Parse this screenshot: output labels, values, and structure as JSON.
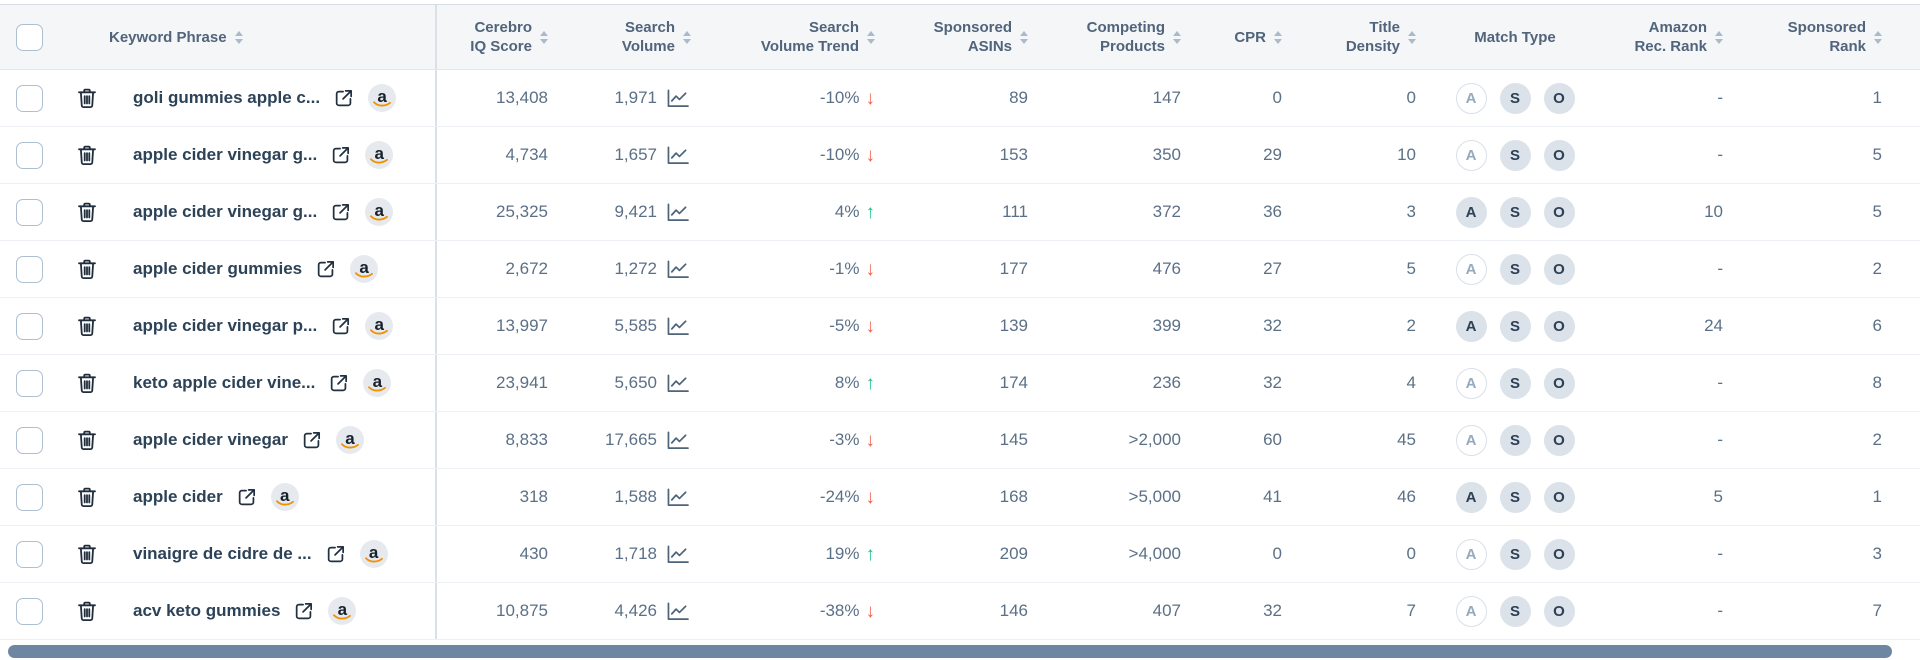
{
  "theme": {
    "header_bg": "#f4f6f8",
    "header_text": "#51647b",
    "value_text": "#5b7086",
    "keyword_text": "#2c4257",
    "divider": "#d9e0e8",
    "row_border": "#edf1f5",
    "positive": "#1fbd8e",
    "negative": "#f2604d",
    "badge_filled_bg": "#dbe2ea",
    "badge_outline_text": "#95aabe",
    "amazon_orange": "#f19100",
    "scrollbar": "#6d87a2"
  },
  "header": {
    "keyword_label": "Keyword Phrase",
    "columns": [
      {
        "id": "iq",
        "line1": "Cerebro",
        "line2": "IQ Score",
        "sortable": true
      },
      {
        "id": "sv",
        "line1": "Search",
        "line2": "Volume",
        "sortable": true
      },
      {
        "id": "svt",
        "line1": "Search",
        "line2": "Volume Trend",
        "sortable": true
      },
      {
        "id": "sponsored_asins",
        "line1": "Sponsored",
        "line2": "ASINs",
        "sortable": true
      },
      {
        "id": "competing",
        "line1": "Competing",
        "line2": "Products",
        "sortable": true
      },
      {
        "id": "cpr",
        "line1": "CPR",
        "line2": "",
        "sortable": true
      },
      {
        "id": "title_density",
        "line1": "Title",
        "line2": "Density",
        "sortable": true
      },
      {
        "id": "match_type",
        "line1": "Match Type",
        "line2": "",
        "sortable": false
      },
      {
        "id": "amazon_rec_rank",
        "line1": "Amazon",
        "line2": "Rec. Rank",
        "sortable": true
      },
      {
        "id": "sponsored_rank",
        "line1": "Sponsored",
        "line2": "Rank",
        "sortable": true
      }
    ]
  },
  "match_type_options": [
    "A",
    "S",
    "O"
  ],
  "rows": [
    {
      "keyword": "goli gummies apple c...",
      "iq": "13,408",
      "search_volume": "1,971",
      "trend": "-10%",
      "trend_dir": "down",
      "sponsored_asins": "89",
      "competing_products": "147",
      "cpr": "0",
      "title_density": "0",
      "match": {
        "A": false,
        "S": true,
        "O": true
      },
      "amazon_rec_rank": "-",
      "sponsored_rank": "1"
    },
    {
      "keyword": "apple cider vinegar g...",
      "iq": "4,734",
      "search_volume": "1,657",
      "trend": "-10%",
      "trend_dir": "down",
      "sponsored_asins": "153",
      "competing_products": "350",
      "cpr": "29",
      "title_density": "10",
      "match": {
        "A": false,
        "S": true,
        "O": true
      },
      "amazon_rec_rank": "-",
      "sponsored_rank": "5"
    },
    {
      "keyword": "apple cider vinegar g...",
      "iq": "25,325",
      "search_volume": "9,421",
      "trend": "4%",
      "trend_dir": "up",
      "sponsored_asins": "111",
      "competing_products": "372",
      "cpr": "36",
      "title_density": "3",
      "match": {
        "A": true,
        "S": true,
        "O": true
      },
      "amazon_rec_rank": "10",
      "sponsored_rank": "5"
    },
    {
      "keyword": "apple cider gummies",
      "iq": "2,672",
      "search_volume": "1,272",
      "trend": "-1%",
      "trend_dir": "down",
      "sponsored_asins": "177",
      "competing_products": "476",
      "cpr": "27",
      "title_density": "5",
      "match": {
        "A": false,
        "S": true,
        "O": true
      },
      "amazon_rec_rank": "-",
      "sponsored_rank": "2"
    },
    {
      "keyword": "apple cider vinegar p...",
      "iq": "13,997",
      "search_volume": "5,585",
      "trend": "-5%",
      "trend_dir": "down",
      "sponsored_asins": "139",
      "competing_products": "399",
      "cpr": "32",
      "title_density": "2",
      "match": {
        "A": true,
        "S": true,
        "O": true
      },
      "amazon_rec_rank": "24",
      "sponsored_rank": "6"
    },
    {
      "keyword": "keto apple cider vine...",
      "iq": "23,941",
      "search_volume": "5,650",
      "trend": "8%",
      "trend_dir": "up",
      "sponsored_asins": "174",
      "competing_products": "236",
      "cpr": "32",
      "title_density": "4",
      "match": {
        "A": false,
        "S": true,
        "O": true
      },
      "amazon_rec_rank": "-",
      "sponsored_rank": "8"
    },
    {
      "keyword": "apple cider vinegar",
      "iq": "8,833",
      "search_volume": "17,665",
      "trend": "-3%",
      "trend_dir": "down",
      "sponsored_asins": "145",
      "competing_products": ">2,000",
      "cpr": "60",
      "title_density": "45",
      "match": {
        "A": false,
        "S": true,
        "O": true
      },
      "amazon_rec_rank": "-",
      "sponsored_rank": "2"
    },
    {
      "keyword": "apple cider",
      "iq": "318",
      "search_volume": "1,588",
      "trend": "-24%",
      "trend_dir": "down",
      "sponsored_asins": "168",
      "competing_products": ">5,000",
      "cpr": "41",
      "title_density": "46",
      "match": {
        "A": true,
        "S": true,
        "O": true
      },
      "amazon_rec_rank": "5",
      "sponsored_rank": "1"
    },
    {
      "keyword": "vinaigre de cidre de ...",
      "iq": "430",
      "search_volume": "1,718",
      "trend": "19%",
      "trend_dir": "up",
      "sponsored_asins": "209",
      "competing_products": ">4,000",
      "cpr": "0",
      "title_density": "0",
      "match": {
        "A": false,
        "S": true,
        "O": true
      },
      "amazon_rec_rank": "-",
      "sponsored_rank": "3"
    },
    {
      "keyword": "acv keto gummies",
      "iq": "10,875",
      "search_volume": "4,426",
      "trend": "-38%",
      "trend_dir": "down",
      "sponsored_asins": "146",
      "competing_products": "407",
      "cpr": "32",
      "title_density": "7",
      "match": {
        "A": false,
        "S": true,
        "O": true
      },
      "amazon_rec_rank": "-",
      "sponsored_rank": "7"
    }
  ]
}
